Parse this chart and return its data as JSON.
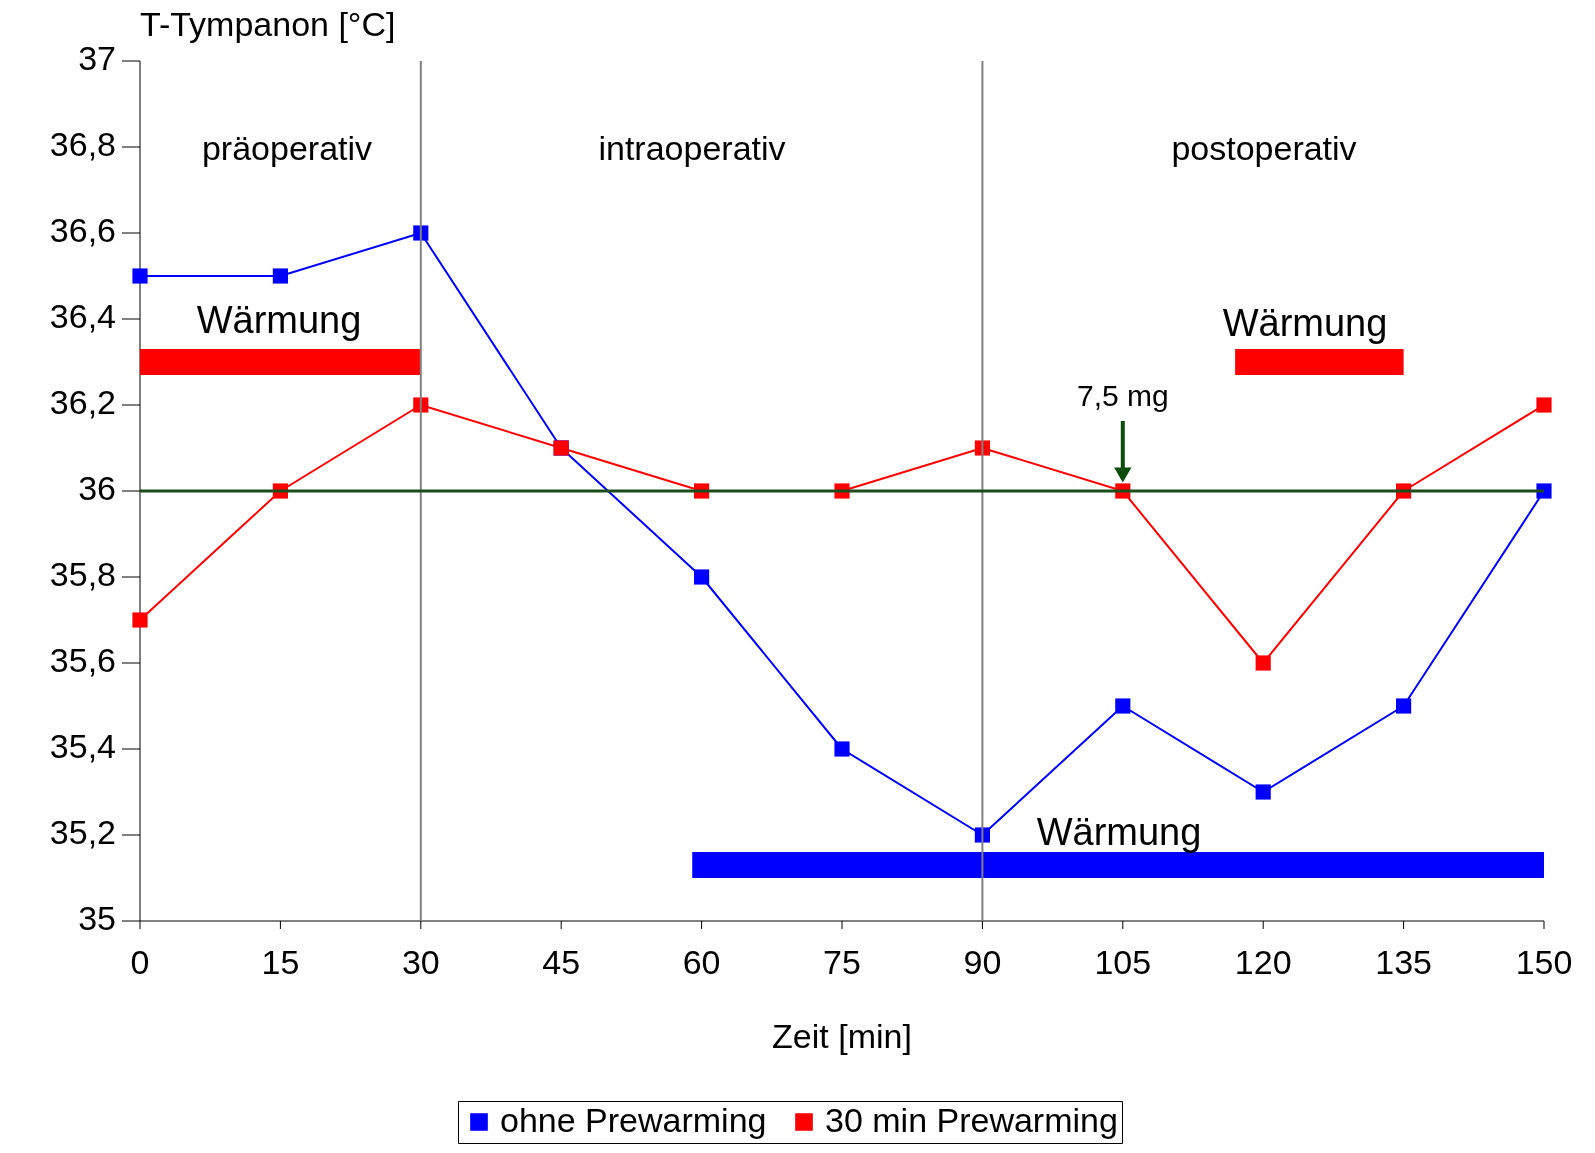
{
  "chart_data": {
    "type": "line",
    "xlabel": "Zeit [min]",
    "ylabel": "T-Tympanon [°C]",
    "x": [
      0,
      15,
      30,
      45,
      60,
      75,
      90,
      105,
      120,
      135,
      150
    ],
    "series": [
      {
        "name": "ohne Prewarming",
        "color": "#0000ff",
        "values": [
          36.5,
          36.5,
          36.6,
          36.1,
          35.8,
          35.4,
          35.2,
          35.5,
          35.3,
          35.5,
          36.0
        ]
      },
      {
        "name": "30 min Prewarming",
        "color": "#ff0000",
        "values": [
          35.7,
          36.0,
          36.2,
          36.1,
          36.0,
          36.0,
          36.1,
          36.0,
          35.6,
          36.0,
          36.2
        ]
      },
      {
        "color": "#ff0000",
        "x": [
          0,
          30
        ],
        "values": [
          36.3,
          36.3
        ],
        "marker": "none"
      },
      {
        "color": "#ff0000",
        "x": [
          117,
          135
        ],
        "values": [
          36.3,
          36.3
        ],
        "marker": "none"
      },
      {
        "color": "#0000ff",
        "x": [
          59,
          150
        ],
        "values": [
          35.13,
          35.13
        ],
        "marker": "none"
      }
    ],
    "xlim": [
      0,
      150
    ],
    "xticks": [
      0,
      15,
      30,
      45,
      60,
      75,
      90,
      105,
      120,
      135,
      150
    ],
    "ylim": [
      35,
      37
    ],
    "yticks": [
      35,
      {
        "value": 35.2,
        "label": "35,2"
      },
      {
        "value": 35.4,
        "label": "35,4"
      },
      {
        "value": 35.6,
        "label": "35,6"
      },
      {
        "value": 35.8,
        "label": "35,8"
      },
      36,
      {
        "value": 36.2,
        "label": "36,2"
      },
      {
        "value": 36.4,
        "label": "36,4"
      },
      {
        "value": 36.6,
        "label": "36,6"
      },
      {
        "value": 36.8,
        "label": "36,8"
      },
      37
    ],
    "ref_lines": [
      {
        "axis": "x",
        "value": 30,
        "color": "#808080"
      },
      {
        "axis": "x",
        "value": 90,
        "color": "#808080"
      },
      {
        "axis": "y",
        "value": 36,
        "color": "#1a4d1a"
      }
    ],
    "annotations": [
      "präoperativ",
      "intraoperativ",
      "postoperativ",
      "Wärmung",
      "Wärmung",
      "Wärmung",
      {
        "text": "7,5 mg",
        "x": 105,
        "y": 36
      }
    ],
    "marker": "square",
    "line_style": "solid",
    "grid": false,
    "legend": "bottom"
  }
}
